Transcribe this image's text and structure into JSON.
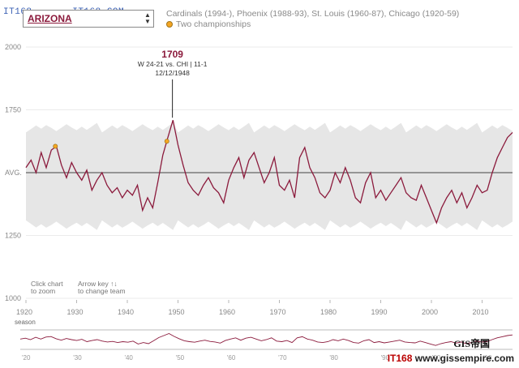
{
  "header": {
    "team": "ARIZONA",
    "history": "Cardinals (1994-), Phoenix (1988-93), St. Louis (1960-87), Chicago (1920-59)",
    "championships_label": "Two championships",
    "watermark_top": "IT168 ..... IT168.COM"
  },
  "annotation": {
    "value": "1709",
    "line1": "W 24-21 vs. CHI | 11-1",
    "line2": "12/12/1948"
  },
  "hints": {
    "zoom_line1": "Click chart",
    "zoom_line2": "to zoom",
    "arrow_line1": "Arrow key ↑↓",
    "arrow_line2": "to change team"
  },
  "watermark": {
    "gis": "GIS帝国",
    "site_prefix": "IT168",
    "site_suffix": "www.gissempire.com"
  },
  "chart_data": {
    "type": "line",
    "xlabel": "season",
    "ylabel": "",
    "xlim": [
      1920,
      2016
    ],
    "ylim": [
      1000,
      2000
    ],
    "y_ticks": [
      {
        "value": 2000,
        "label": "2000"
      },
      {
        "value": 1750,
        "label": "1750"
      },
      {
        "value": 1500,
        "label": "AVG."
      },
      {
        "value": 1250,
        "label": "1250"
      },
      {
        "value": 1000,
        "label": "1000"
      }
    ],
    "x_ticks": [
      1920,
      1930,
      1940,
      1950,
      1960,
      1970,
      1980,
      1990,
      2000,
      2010
    ],
    "mini_ticks": [
      "'20",
      "'30",
      "'40",
      "'50",
      "'60",
      "'70",
      "'80",
      "'90",
      "'00",
      "'10"
    ],
    "average_line": 1500,
    "championships": [
      {
        "season": 1925.8,
        "elo": 1605
      },
      {
        "season": 1947.8,
        "elo": 1625
      }
    ],
    "highlight": {
      "season": 1948.9,
      "elo": 1709
    },
    "series": [
      {
        "x": [
          1920,
          1921,
          1922,
          1923,
          1924,
          1925,
          1926,
          1927,
          1928,
          1929,
          1930,
          1931,
          1932,
          1933,
          1934,
          1935,
          1936,
          1937,
          1938,
          1939,
          1940,
          1941,
          1942,
          1943,
          1944,
          1945,
          1946,
          1947,
          1948,
          1949,
          1950,
          1951,
          1952,
          1953,
          1954,
          1955,
          1956,
          1957,
          1958,
          1959,
          1960,
          1961,
          1962,
          1963,
          1964,
          1965,
          1966,
          1967,
          1968,
          1969,
          1970,
          1971,
          1972,
          1973,
          1974,
          1975,
          1976,
          1977,
          1978,
          1979,
          1980,
          1981,
          1982,
          1983,
          1984,
          1985,
          1986,
          1987,
          1988,
          1989,
          1990,
          1991,
          1992,
          1993,
          1994,
          1995,
          1996,
          1997,
          1998,
          1999,
          2000,
          2001,
          2002,
          2003,
          2004,
          2005,
          2006,
          2007,
          2008,
          2009,
          2010,
          2011,
          2012,
          2013,
          2014,
          2015,
          2016
        ],
        "y": [
          1520,
          1550,
          1500,
          1580,
          1520,
          1590,
          1605,
          1530,
          1480,
          1540,
          1500,
          1470,
          1510,
          1430,
          1470,
          1500,
          1450,
          1420,
          1440,
          1400,
          1430,
          1410,
          1450,
          1350,
          1400,
          1360,
          1460,
          1570,
          1640,
          1709,
          1610,
          1530,
          1460,
          1430,
          1410,
          1450,
          1480,
          1440,
          1420,
          1380,
          1470,
          1520,
          1560,
          1480,
          1550,
          1580,
          1520,
          1460,
          1500,
          1560,
          1450,
          1430,
          1470,
          1400,
          1560,
          1600,
          1520,
          1480,
          1420,
          1400,
          1430,
          1500,
          1460,
          1520,
          1470,
          1400,
          1380,
          1460,
          1500,
          1400,
          1430,
          1390,
          1420,
          1450,
          1480,
          1420,
          1400,
          1390,
          1450,
          1400,
          1350,
          1300,
          1360,
          1400,
          1430,
          1380,
          1420,
          1360,
          1400,
          1450,
          1420,
          1430,
          1500,
          1560,
          1600,
          1640,
          1660
        ]
      }
    ]
  }
}
